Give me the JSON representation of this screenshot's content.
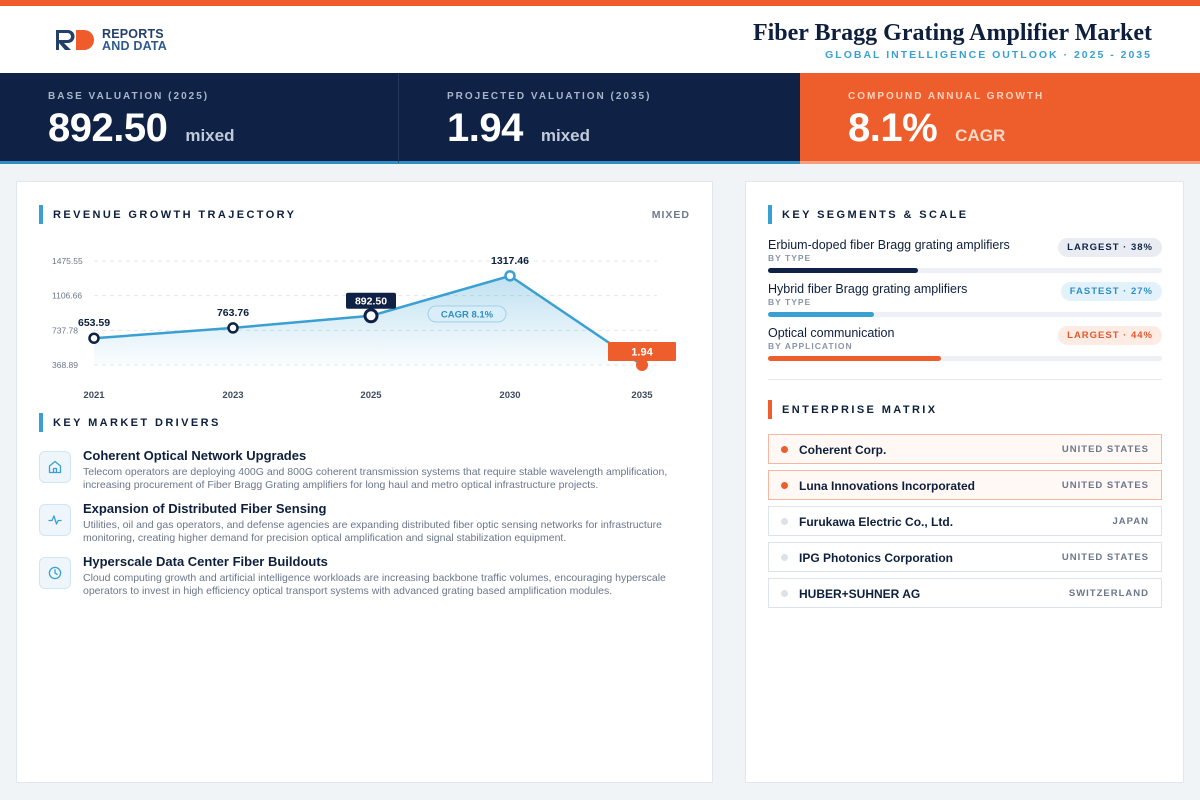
{
  "brand": {
    "logo_line1": "REPORTS",
    "logo_line2": "AND DATA"
  },
  "header": {
    "title": "Fiber Bragg Grating Amplifier Market",
    "subtitle": "GLOBAL INTELLIGENCE OUTLOOK · 2025 - 2035"
  },
  "kpis": [
    {
      "label": "BASE VALUATION (2025)",
      "value": "892.50",
      "unit": "mixed"
    },
    {
      "label": "PROJECTED VALUATION (2035)",
      "value": "1.94",
      "unit": "mixed"
    },
    {
      "label": "COMPOUND ANNUAL GROWTH",
      "value": "8.1%",
      "unit": "CAGR"
    }
  ],
  "revenue": {
    "title": "REVENUE GROWTH TRAJECTORY",
    "unit_label": "MIXED",
    "cagr_badge": "CAGR 8.1%"
  },
  "chart_data": {
    "type": "area",
    "title": "REVENUE GROWTH TRAJECTORY",
    "x": [
      "2021",
      "2023",
      "2025",
      "2030",
      "2035"
    ],
    "values": [
      653.59,
      763.76,
      892.5,
      1317.46,
      1.94
    ],
    "value_labels": [
      "653.59",
      "763.76",
      "892.50",
      "1317.46",
      "1.94"
    ],
    "yticks": [
      1475.55,
      1106.66,
      737.78,
      368.89
    ],
    "ytick_labels": [
      "1475.55",
      "1106.66",
      "737.78",
      "368.89"
    ],
    "ylim": [
      368.89,
      1475.55
    ],
    "grid": true,
    "highlight": {
      "base_index": 2,
      "projected_index": 4
    },
    "colors": {
      "line": "#3aa0d2",
      "base_marker": "#0f2245",
      "projected_marker": "#ee5d2c"
    }
  },
  "drivers": {
    "title": "KEY MARKET DRIVERS",
    "items": [
      {
        "icon": "building-icon",
        "title": "Coherent Optical Network Upgrades",
        "description": "Telecom operators are deploying 400G and 800G coherent transmission systems that require stable wavelength amplification, increasing procurement of Fiber Bragg Grating amplifiers for long haul and metro optical infrastructure projects."
      },
      {
        "icon": "pulse-icon",
        "title": "Expansion of Distributed Fiber Sensing",
        "description": "Utilities, oil and gas operators, and defense agencies are expanding distributed fiber optic sensing networks for infrastructure monitoring, creating higher demand for precision optical amplification and signal stabilization equipment."
      },
      {
        "icon": "clock-icon",
        "title": "Hyperscale Data Center Fiber Buildouts",
        "description": "Cloud computing growth and artificial intelligence workloads are increasing backbone traffic volumes, encouraging hyperscale operators to invest in high efficiency optical transport systems with advanced grating based amplification modules."
      }
    ]
  },
  "segments": {
    "title": "KEY SEGMENTS & SCALE",
    "items": [
      {
        "name": "Erbium-doped fiber Bragg grating amplifiers",
        "category": "BY TYPE",
        "badge": "LARGEST · 38%",
        "share": 0.38,
        "color": "#0f2245",
        "badge_bg": "#e9edf3",
        "badge_fg": "#0f2245"
      },
      {
        "name": "Hybrid fiber Bragg grating amplifiers",
        "category": "BY TYPE",
        "badge": "FASTEST · 27%",
        "share": 0.27,
        "color": "#3aa0d2",
        "badge_bg": "#e3f2fa",
        "badge_fg": "#2e8fc4"
      },
      {
        "name": "Optical communication",
        "category": "BY APPLICATION",
        "badge": "LARGEST · 44%",
        "share": 0.44,
        "color": "#ee5d2c",
        "badge_bg": "#fdebe4",
        "badge_fg": "#e4572a"
      }
    ]
  },
  "matrix": {
    "title": "ENTERPRISE MATRIX",
    "companies": [
      {
        "name": "Coherent Corp.",
        "country": "UNITED STATES",
        "highlight": true
      },
      {
        "name": "Luna Innovations Incorporated",
        "country": "UNITED STATES",
        "highlight": true
      },
      {
        "name": "Furukawa Electric Co., Ltd.",
        "country": "JAPAN",
        "highlight": false
      },
      {
        "name": "IPG Photonics Corporation",
        "country": "UNITED STATES",
        "highlight": false
      },
      {
        "name": "HUBER+SUHNER AG",
        "country": "SWITZERLAND",
        "highlight": false
      }
    ]
  }
}
